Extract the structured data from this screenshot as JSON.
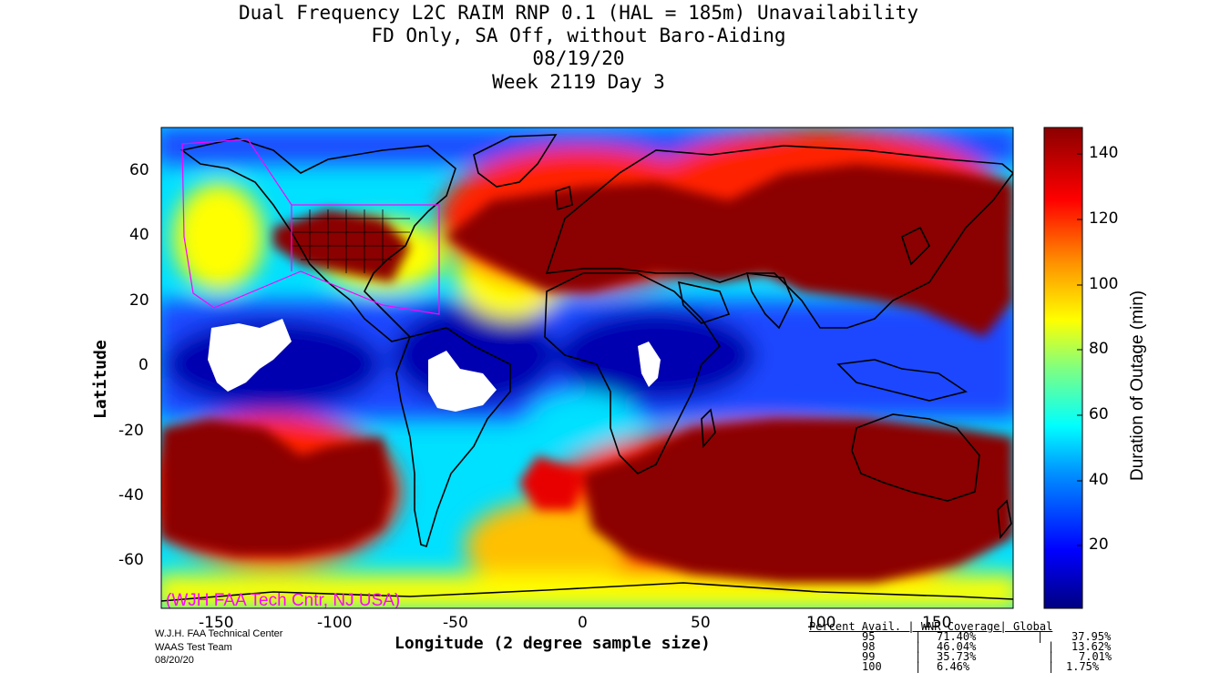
{
  "titles": [
    "Dual Frequency L2C RAIM RNP 0.1 (HAL = 185m) Unavailability",
    "FD Only, SA Off, without Baro-Aiding",
    "08/19/20",
    "Week 2119 Day 3"
  ],
  "map": {
    "x_label": "Longitude (2 degree sample size)",
    "y_label": "Latitude",
    "x_ticks": [
      "-150",
      "-100",
      "-50",
      "0",
      "50",
      "100",
      "150"
    ],
    "y_ticks": [
      "60",
      "40",
      "20",
      "0",
      "-20",
      "-40",
      "-60"
    ],
    "lon_range": [
      -180,
      180
    ],
    "lat_range": [
      -74,
      74
    ],
    "watermark": "(WJH FAA Tech Cntr, NJ USA)",
    "colors": {
      "low": "#00008b",
      "blue": "#1e46ff",
      "cyan": "#00e0ff",
      "yellow": "#ffff00",
      "orange": "#ff8a00",
      "red": "#e80000",
      "darkred": "#8b0000",
      "no_data": "#ffffff",
      "outline": "#ff00ff"
    }
  },
  "colorbar": {
    "label": "Duration of Outage (min)",
    "ticks": [
      "140",
      "120",
      "100",
      "80",
      "60",
      "40",
      "20"
    ],
    "range": [
      0,
      150
    ]
  },
  "credits": [
    "W.J.H. FAA Technical Center",
    "WAAS Test Team",
    "08/20/20"
  ],
  "stats": {
    "header": "Percent Avail. | WNR Coverage| Global",
    "rows": [
      {
        "pct": "95",
        "wnr": "71.40%",
        "global": "37.95%"
      },
      {
        "pct": "98",
        "wnr": "46.04%",
        "global": "13.62%"
      },
      {
        "pct": "99",
        "wnr": "35.73%",
        "global": "7.01%"
      },
      {
        "pct": "100",
        "wnr": "6.46%",
        "global": "1.75%"
      }
    ]
  }
}
